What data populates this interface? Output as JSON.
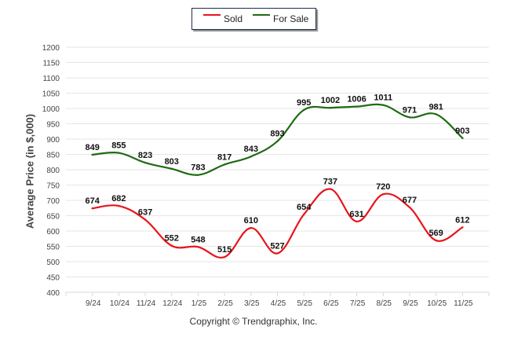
{
  "chart_data": {
    "type": "line",
    "title": "",
    "xlabel": "",
    "ylabel": "Average Price (in $,000)",
    "ylim": [
      400,
      1200
    ],
    "yticks": [
      400,
      450,
      500,
      550,
      600,
      650,
      700,
      750,
      800,
      850,
      900,
      950,
      1000,
      1050,
      1100,
      1150,
      1200
    ],
    "grid": true,
    "legend_position": "top-center",
    "categories": [
      "9/24",
      "10/24",
      "11/24",
      "12/24",
      "1/25",
      "2/25",
      "3/25",
      "4/25",
      "5/25",
      "6/25",
      "7/25",
      "8/25",
      "9/25",
      "10/25",
      "11/25"
    ],
    "series": [
      {
        "name": "Sold",
        "color": "#e8141b",
        "values": [
          674,
          682,
          637,
          552,
          548,
          515,
          610,
          527,
          654,
          737,
          631,
          720,
          677,
          569,
          612
        ]
      },
      {
        "name": "For Sale",
        "color": "#1e6b12",
        "values": [
          849,
          855,
          823,
          803,
          783,
          817,
          843,
          893,
          995,
          1002,
          1006,
          1011,
          971,
          981,
          903
        ]
      }
    ]
  },
  "legend": {
    "items": [
      {
        "label": "Sold",
        "color": "#e8141b"
      },
      {
        "label": "For Sale",
        "color": "#1e6b12"
      }
    ]
  },
  "footer": {
    "copyright": "Copyright © Trendgraphix, Inc."
  }
}
